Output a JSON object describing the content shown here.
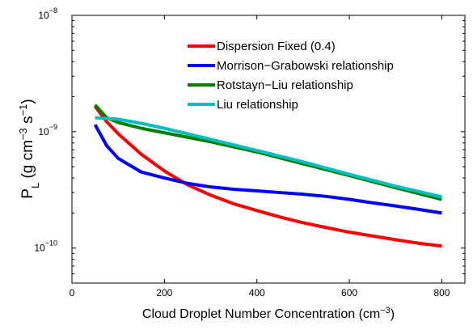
{
  "chart_data": {
    "type": "line",
    "xlabel": {
      "main": "Cloud Droplet Number Concentration (cm",
      "sup": "−3",
      "tail": ")"
    },
    "ylabel": {
      "main": "P",
      "sub": "L",
      "part1": " (g cm",
      "sup1": "−3",
      "part2": " s",
      "sup2": "−1",
      "tail": ")"
    },
    "x_scale": "linear",
    "y_scale": "log",
    "xlim": [
      0,
      850
    ],
    "ylim": [
      5e-11,
      1e-08
    ],
    "x_ticks": [
      {
        "value": 0,
        "label": "0"
      },
      {
        "value": 200,
        "label": "200"
      },
      {
        "value": 400,
        "label": "400"
      },
      {
        "value": 600,
        "label": "600"
      },
      {
        "value": 800,
        "label": "800"
      }
    ],
    "y_ticks": [
      {
        "value": 1e-10,
        "base": "10",
        "exp": "−10"
      },
      {
        "value": 1e-09,
        "base": "10",
        "exp": "−9"
      },
      {
        "value": 1e-08,
        "base": "10",
        "exp": "−8"
      }
    ],
    "grid": false,
    "legend_position": "top-right",
    "series": [
      {
        "name": "Dispersion Fixed (0.4)",
        "color": "#ff0000",
        "x": [
          50,
          75,
          100,
          150,
          200,
          250,
          300,
          350,
          400,
          450,
          500,
          550,
          600,
          650,
          700,
          750,
          800
        ],
        "y": [
          1.65e-09,
          1.22e-09,
          9.6e-10,
          6.4e-10,
          4.6e-10,
          3.5e-10,
          2.85e-10,
          2.4e-10,
          2.1e-10,
          1.85e-10,
          1.65e-10,
          1.5e-10,
          1.37e-10,
          1.27e-10,
          1.18e-10,
          1.1e-10,
          1.04e-10
        ]
      },
      {
        "name": "Morrison−Grabowski relationship",
        "color": "#0000ff",
        "x": [
          50,
          75,
          100,
          150,
          200,
          250,
          300,
          350,
          400,
          450,
          500,
          550,
          600,
          650,
          700,
          750,
          800
        ],
        "y": [
          1.15e-09,
          7.6e-10,
          5.9e-10,
          4.5e-10,
          4e-10,
          3.6e-10,
          3.35e-10,
          3.2e-10,
          3.1e-10,
          3e-10,
          2.9e-10,
          2.78e-10,
          2.62e-10,
          2.45e-10,
          2.3e-10,
          2.15e-10,
          2e-10
        ]
      },
      {
        "name": "Rotstayn−Liu relationship",
        "color": "#008000",
        "x": [
          50,
          75,
          100,
          150,
          200,
          300,
          400,
          500,
          600,
          700,
          800
        ],
        "y": [
          1.7e-09,
          1.32e-09,
          1.2e-09,
          1.07e-09,
          9.8e-10,
          8.2e-10,
          6.7e-10,
          5.3e-10,
          4.2e-10,
          3.3e-10,
          2.62e-10
        ]
      },
      {
        "name": "Liu relationship",
        "color": "#00bfbf",
        "x": [
          50,
          100,
          150,
          200,
          300,
          400,
          500,
          600,
          700,
          800
        ],
        "y": [
          1.32e-09,
          1.28e-09,
          1.18e-09,
          1.07e-09,
          8.6e-10,
          6.9e-10,
          5.5e-10,
          4.3e-10,
          3.4e-10,
          2.75e-10
        ]
      }
    ]
  }
}
